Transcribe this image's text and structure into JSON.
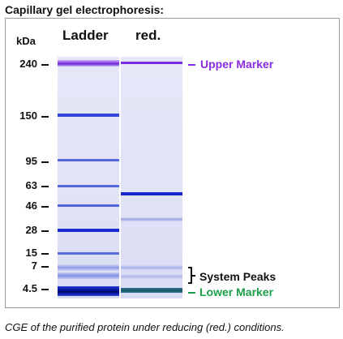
{
  "title": "Capillary gel electrophoresis:",
  "unit_label": "kDa",
  "lanes": [
    {
      "name": "Ladder"
    },
    {
      "name": "red."
    }
  ],
  "ladder_markers": [
    "240",
    "150",
    "95",
    "63",
    "46",
    "28",
    "15",
    "7",
    "4.5"
  ],
  "annotations": {
    "upper_marker": "Upper Marker",
    "system_peaks": "System Peaks",
    "lower_marker": "Lower Marker"
  },
  "colors": {
    "upper_marker": "#8a2be2",
    "lower_marker": "#1aa04a",
    "band": "#1f2fd0",
    "lane_background": "#e3e5f6"
  },
  "caption": "CGE of the purified protein under reducing (red.) conditions."
}
